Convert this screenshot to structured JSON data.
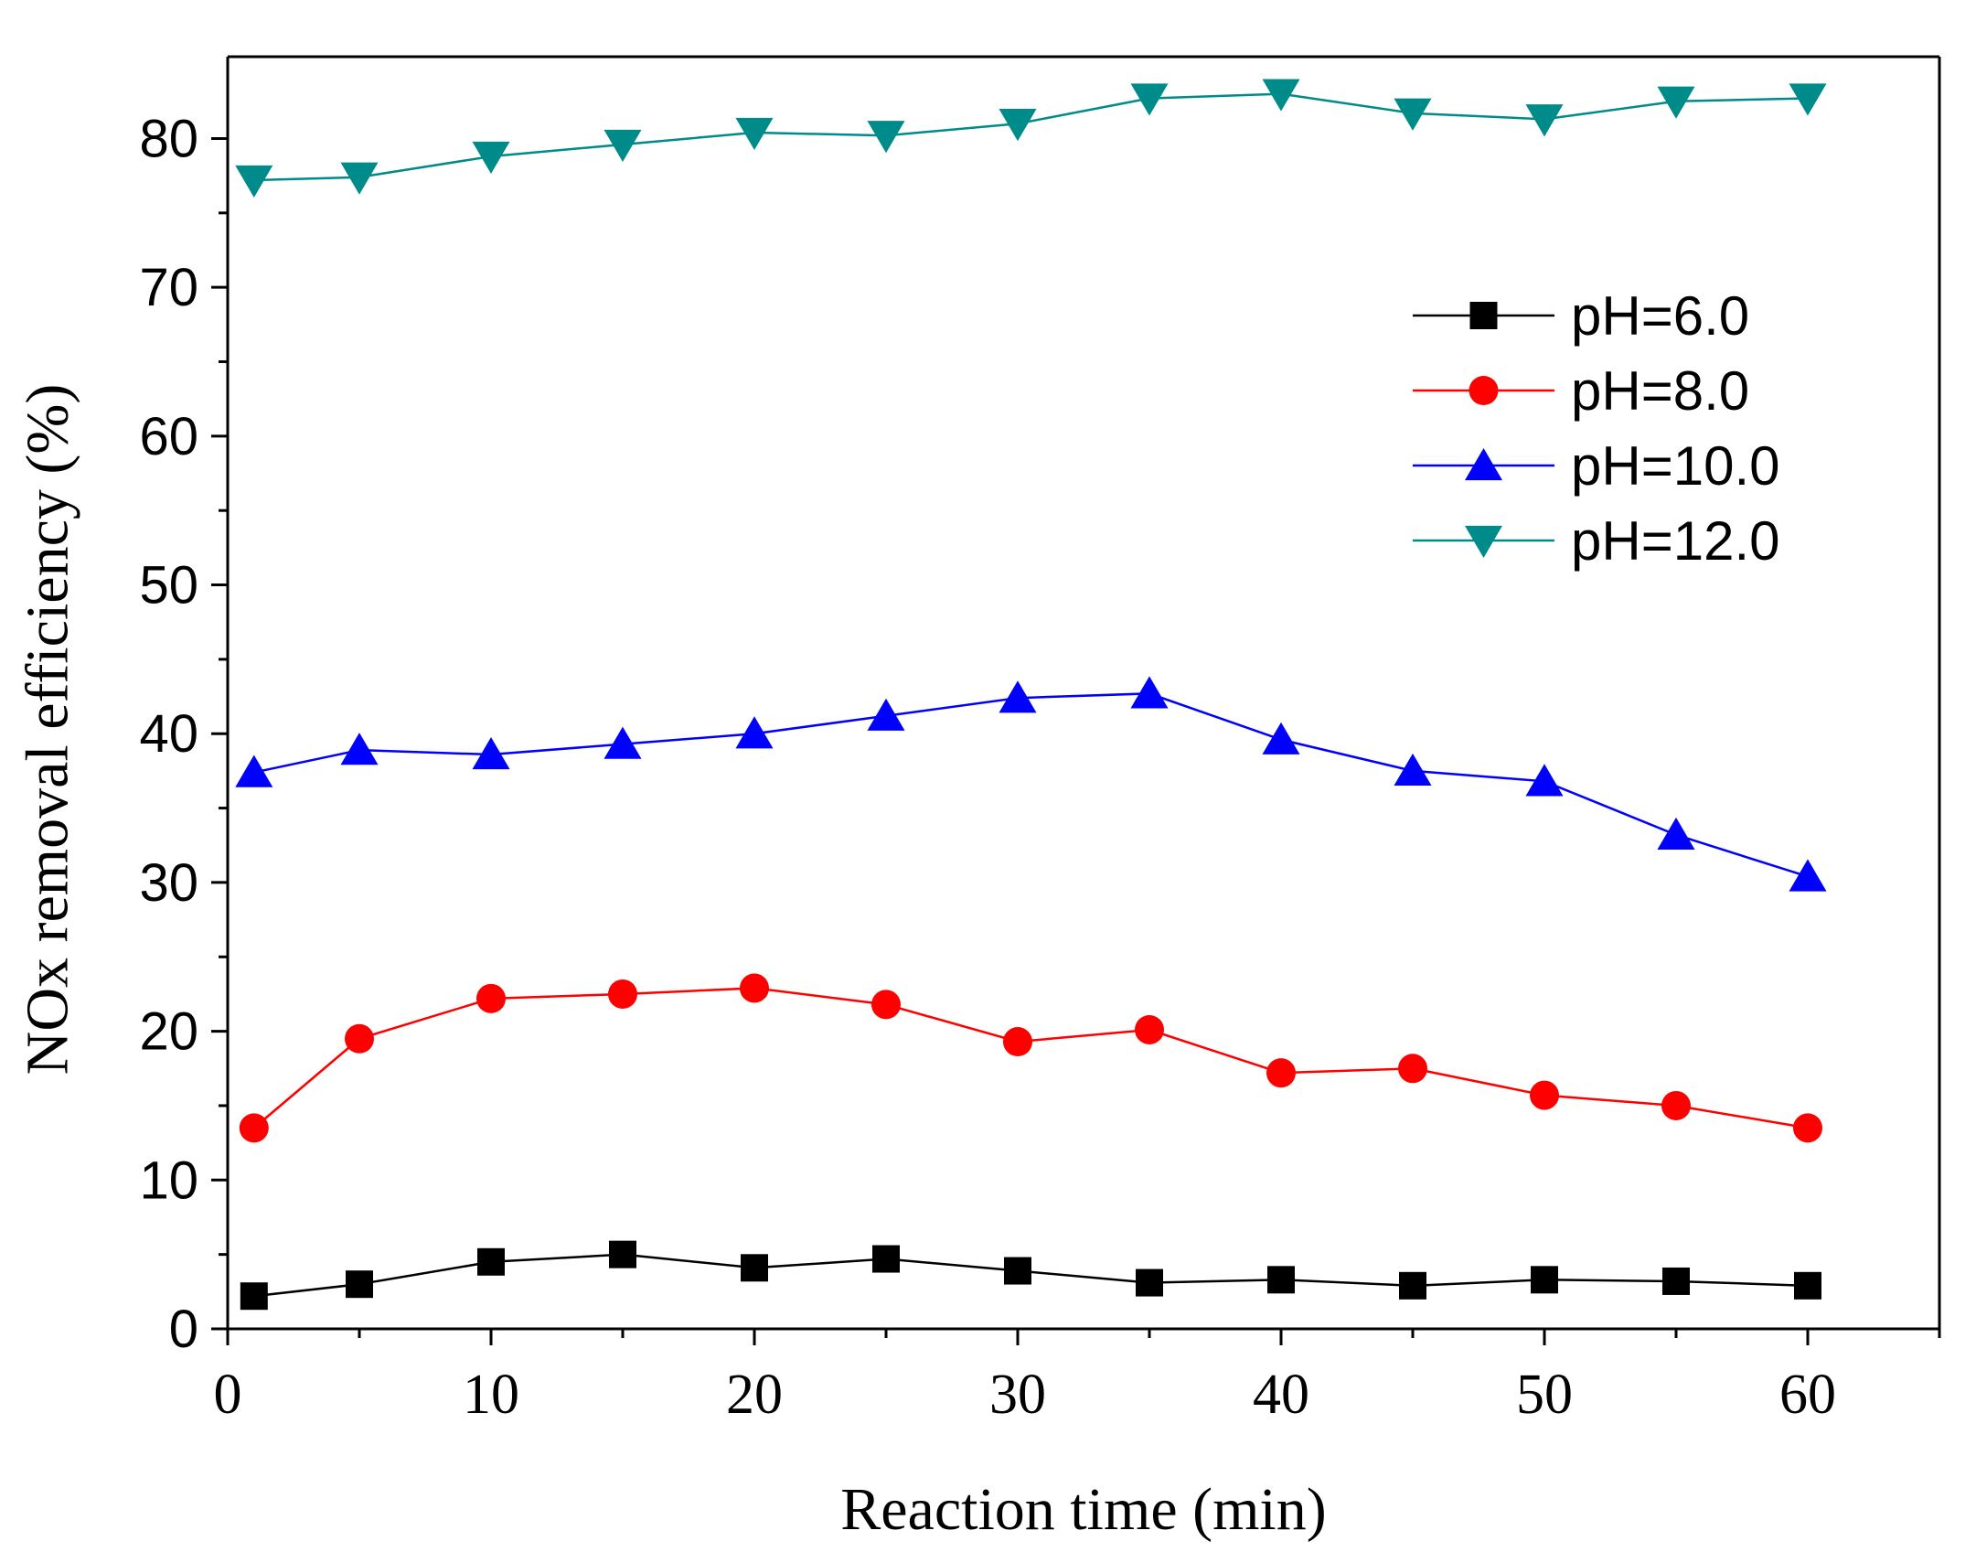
{
  "chart_data": {
    "type": "line",
    "title": "",
    "xlabel": "Reaction time (min)",
    "ylabel": "NOx removal efficiency (%)",
    "xlim": [
      0,
      65
    ],
    "ylim": [
      0,
      85.5
    ],
    "x_ticks": [
      0,
      10,
      20,
      30,
      40,
      50,
      60
    ],
    "x_tick_labels": [
      "0",
      "10",
      "20",
      "30",
      "40",
      "50",
      "60"
    ],
    "y_ticks": [
      0,
      10,
      20,
      30,
      40,
      50,
      60,
      70,
      80
    ],
    "y_tick_labels": [
      "0",
      "10",
      "20",
      "30",
      "40",
      "50",
      "60",
      "70",
      "80"
    ],
    "grid": false,
    "legend_position": "top-right",
    "x": [
      1,
      5,
      10,
      15,
      20,
      25,
      30,
      35,
      40,
      45,
      50,
      55,
      60
    ],
    "series": [
      {
        "name": "pH=6.0",
        "color": "#000000",
        "marker": "square",
        "values": [
          2.2,
          3.0,
          4.5,
          5.0,
          4.1,
          4.7,
          3.9,
          3.1,
          3.3,
          2.9,
          3.3,
          3.2,
          2.9
        ]
      },
      {
        "name": "pH=8.0",
        "color": "#ff0000",
        "marker": "circle",
        "values": [
          13.5,
          19.5,
          22.2,
          22.5,
          22.9,
          21.8,
          19.3,
          20.1,
          17.2,
          17.5,
          15.7,
          15.0,
          13.5
        ]
      },
      {
        "name": "pH=10.0",
        "color": "#0000ff",
        "marker": "triangle-up",
        "values": [
          37.4,
          38.9,
          38.6,
          39.3,
          40.0,
          41.2,
          42.4,
          42.7,
          39.6,
          37.5,
          36.8,
          33.2,
          30.4
        ]
      },
      {
        "name": "pH=12.0",
        "color": "#008b8b",
        "marker": "triangle-down",
        "values": [
          77.2,
          77.4,
          78.8,
          79.6,
          80.4,
          80.2,
          81.0,
          82.7,
          83.0,
          81.7,
          81.3,
          82.5,
          82.7
        ]
      }
    ]
  }
}
